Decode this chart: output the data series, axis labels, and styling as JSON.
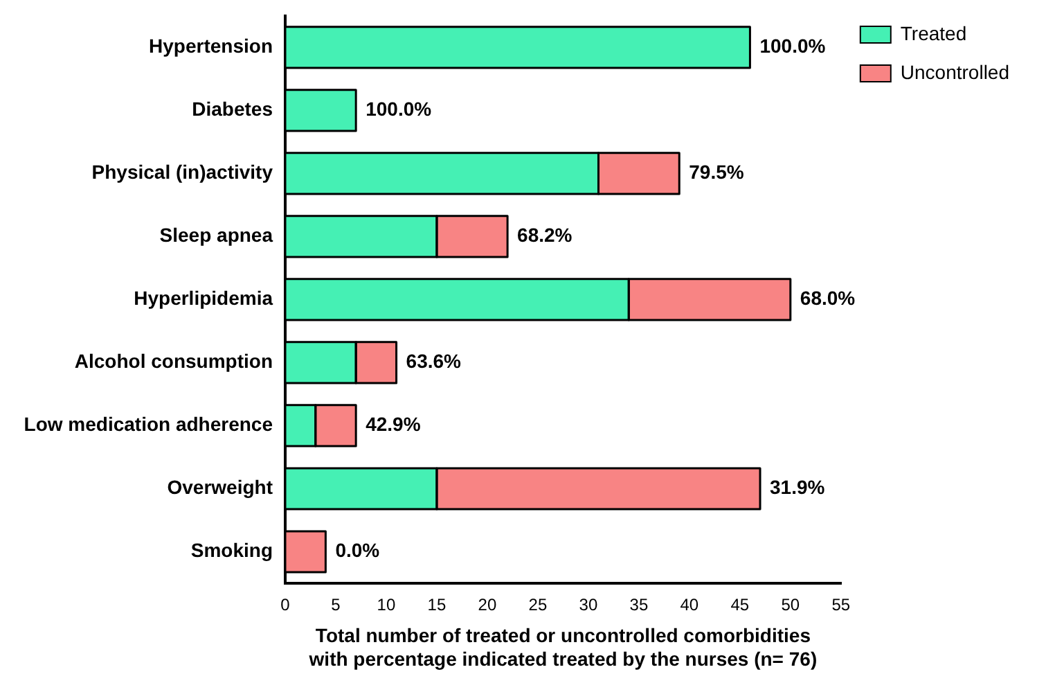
{
  "chart_data": {
    "type": "bar",
    "orientation": "horizontal",
    "stacked": true,
    "categories": [
      "Hypertension",
      "Diabetes",
      "Physical (in)activity",
      "Sleep apnea",
      "Hyperlipidemia",
      "Alcohol consumption",
      "Low medication adherence",
      "Overweight",
      "Smoking"
    ],
    "series": [
      {
        "name": "Treated",
        "color": "#45f0b4",
        "values": [
          46,
          7,
          31,
          15,
          34,
          7,
          3,
          15,
          0
        ]
      },
      {
        "name": "Uncontrolled",
        "color": "#f88484",
        "values": [
          0,
          0,
          8,
          7,
          16,
          4,
          4,
          32,
          4
        ]
      }
    ],
    "annotations": [
      {
        "text": "100.0%",
        "x": 46,
        "y": "Hypertension"
      },
      {
        "text": "100.0%",
        "x": 7,
        "y": "Diabetes"
      },
      {
        "text": "79.5%",
        "x": 39,
        "y": "Physical (in)activity"
      },
      {
        "text": "68.2%",
        "x": 22,
        "y": "Sleep apnea"
      },
      {
        "text": "68.0%",
        "x": 50,
        "y": "Hyperlipidemia"
      },
      {
        "text": "63.6%",
        "x": 11,
        "y": "Alcohol consumption"
      },
      {
        "text": "42.9%",
        "x": 7,
        "y": "Low medication adherence"
      },
      {
        "text": "31.9%",
        "x": 47,
        "y": "Overweight"
      },
      {
        "text": "0.0%",
        "x": 4,
        "y": "Smoking"
      }
    ],
    "xlabel": "Total number of treated or uncontrolled comorbidities\nwith percentage indicated treated by the nurses (n= 76)",
    "xlim": [
      0,
      55
    ],
    "xticks": [
      0,
      5,
      10,
      15,
      20,
      25,
      30,
      35,
      40,
      45,
      50,
      55
    ],
    "grid": false,
    "legend": "top right"
  }
}
